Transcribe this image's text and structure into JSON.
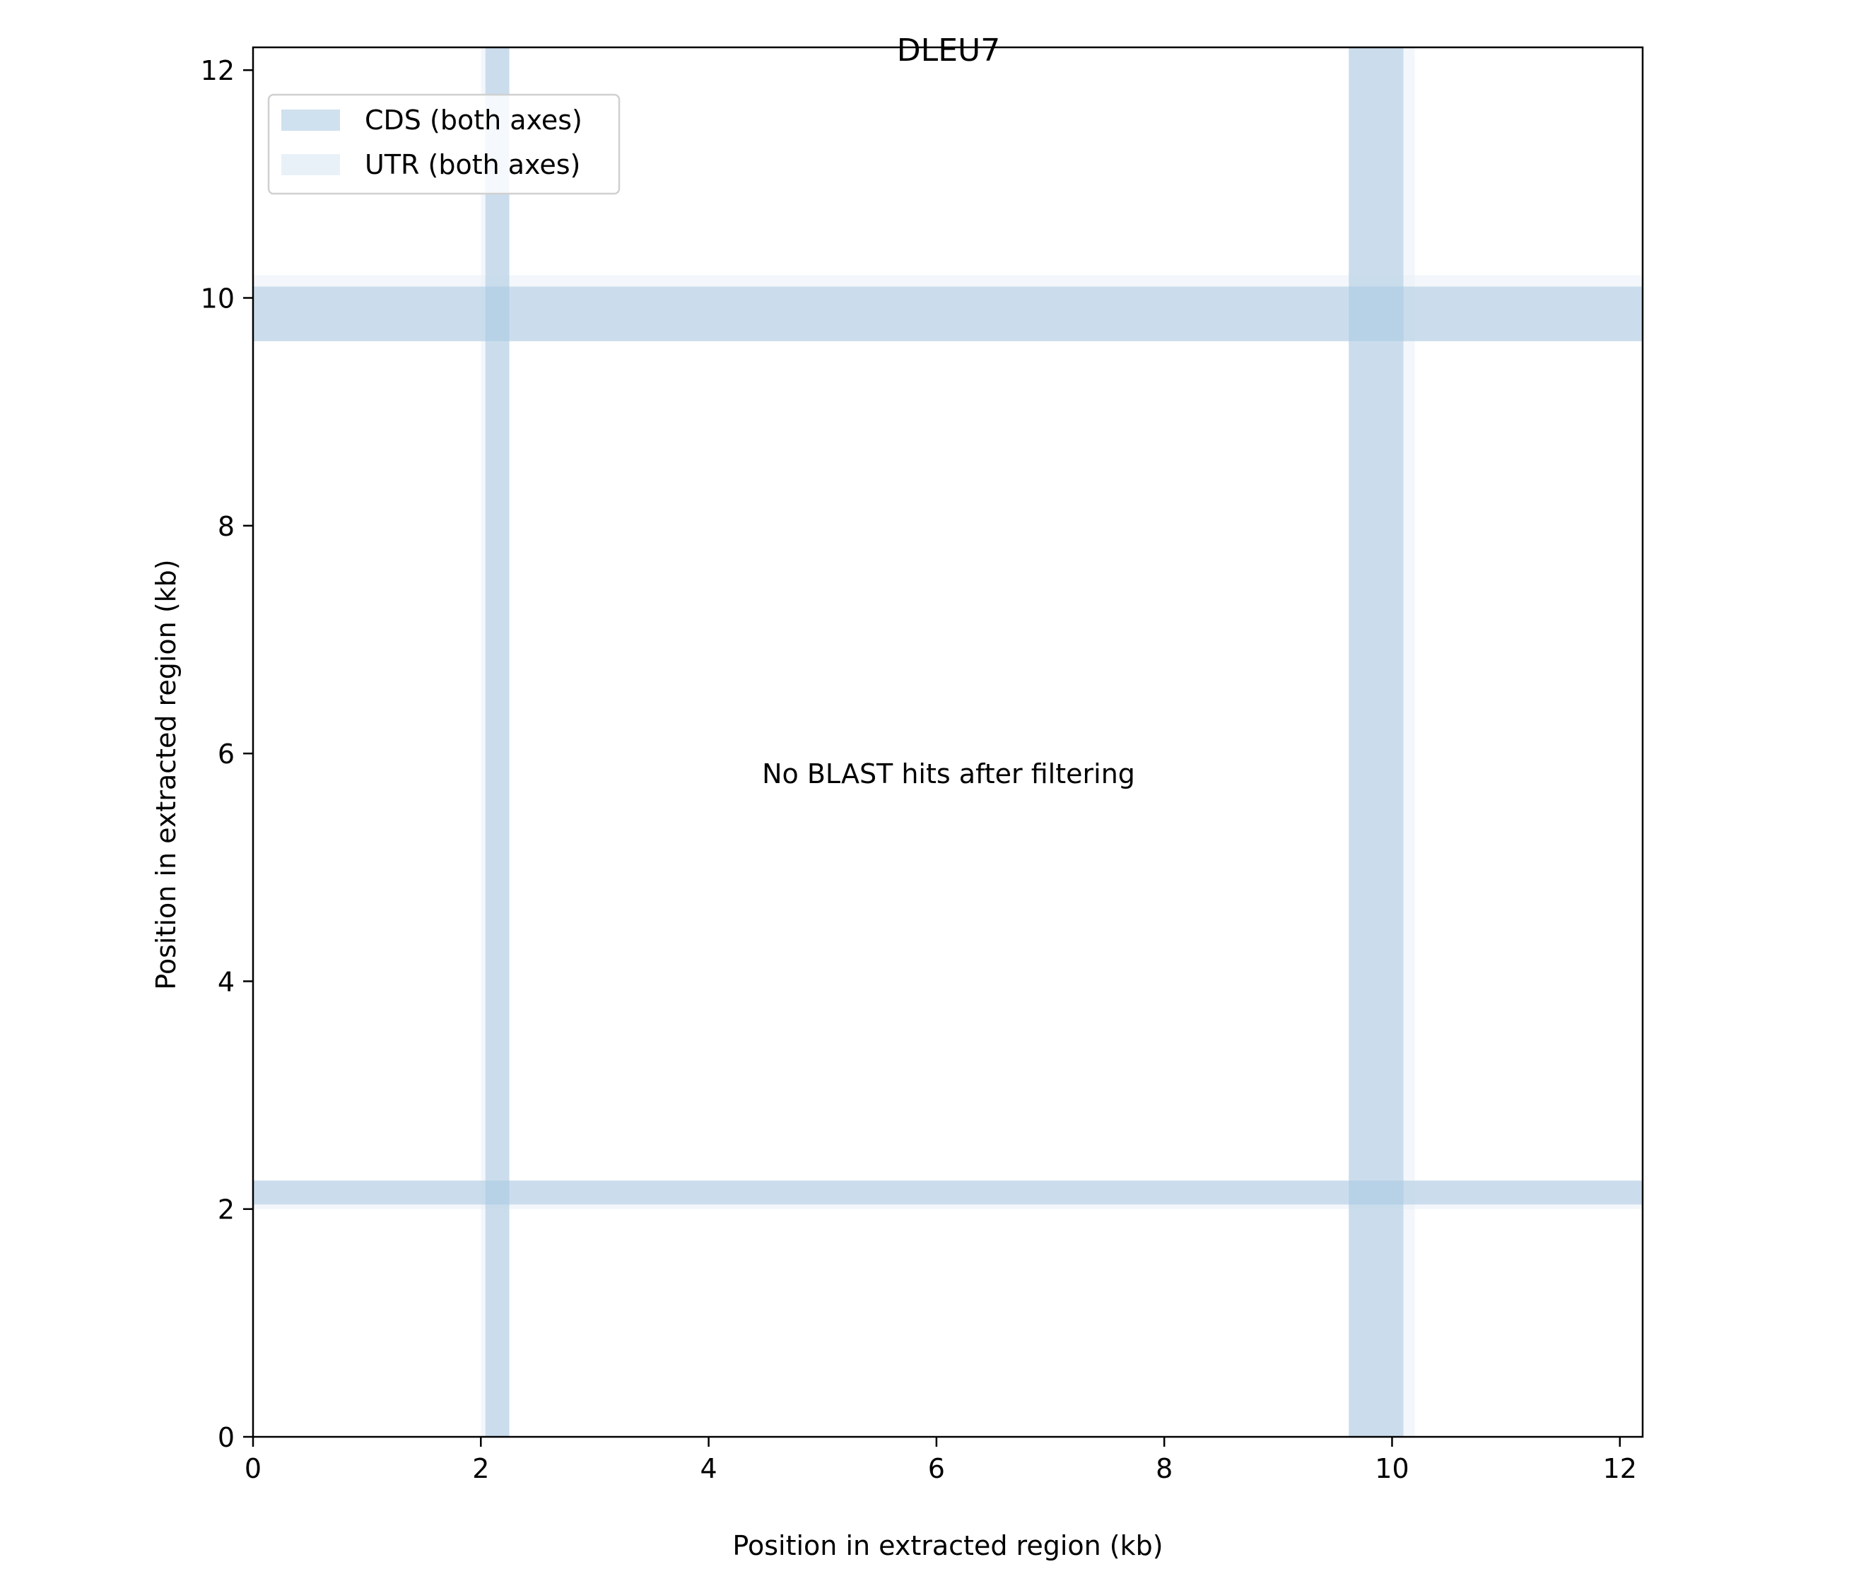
{
  "chart_data": {
    "type": "dotplot",
    "title": "DLEU7",
    "xlabel": "Position in extracted region (kb)",
    "ylabel": "Position in extracted region (kb)",
    "xlim": [
      0,
      12.2
    ],
    "ylim": [
      0,
      12.2
    ],
    "xticks": [
      0,
      2,
      4,
      6,
      8,
      10,
      12
    ],
    "yticks": [
      0,
      2,
      4,
      6,
      8,
      10,
      12
    ],
    "grid": false,
    "legend_position": "top-left",
    "legend": [
      {
        "label": "CDS (both axes)",
        "color": "#cfe1ee"
      },
      {
        "label": "UTR (both axes)",
        "color": "#e9f1f8"
      }
    ],
    "utr_regions": [
      {
        "start": 2.0,
        "end": 2.25
      },
      {
        "start": 9.62,
        "end": 10.2
      }
    ],
    "cds_regions": [
      {
        "start": 2.04,
        "end": 2.25
      },
      {
        "start": 9.62,
        "end": 10.1
      }
    ],
    "annotation": "No BLAST hits after filtering",
    "colors": {
      "cds": "#cfe1ee",
      "utr": "#e9f1f8",
      "axis": "#000000"
    }
  }
}
